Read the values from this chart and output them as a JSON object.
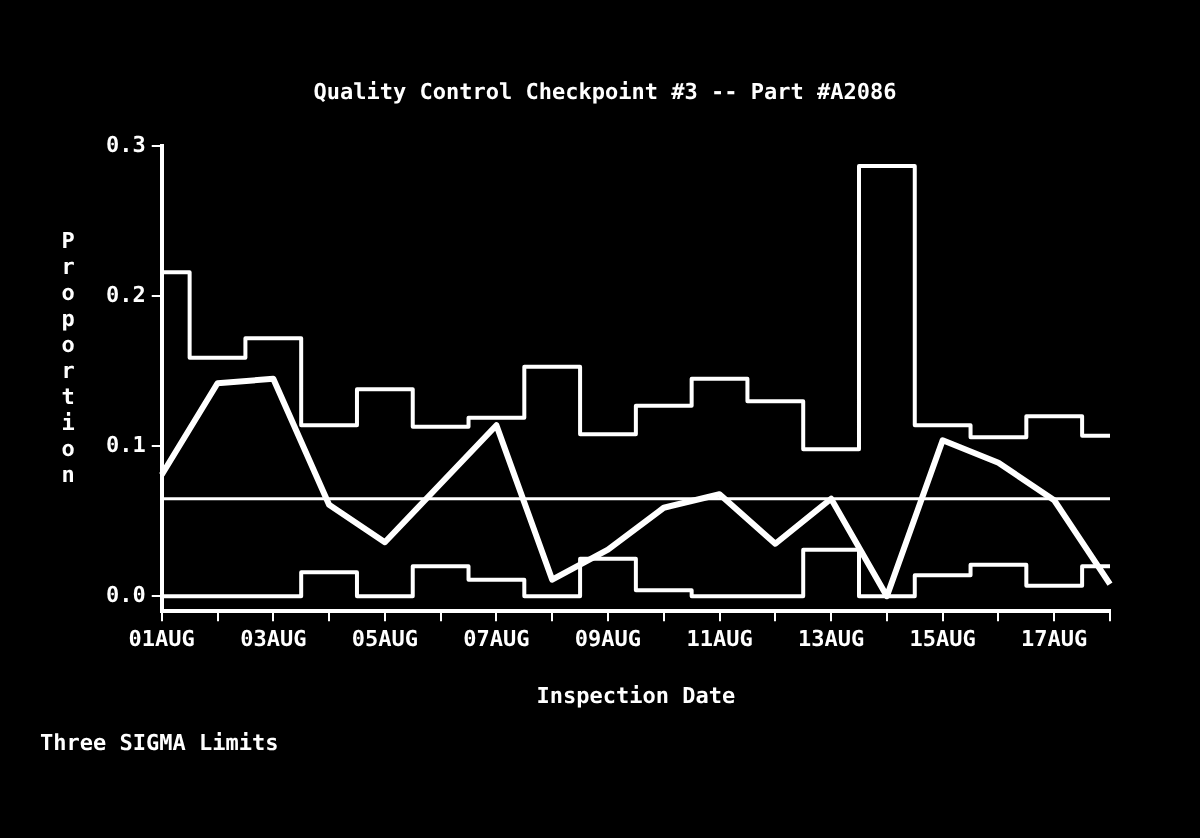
{
  "chart_data": {
    "type": "line",
    "subtitle": "Quality Control Checkpoint #3 -- Part #A2086",
    "xlabel": "Inspection Date",
    "ylabel": "Proportion",
    "categories": [
      "01AUG",
      null,
      "03AUG",
      null,
      "05AUG",
      null,
      "07AUG",
      null,
      "09AUG",
      null,
      "11AUG",
      null,
      "13AUG",
      null,
      "15AUG",
      null,
      "17AUG",
      null
    ],
    "series": [
      {
        "type": "line",
        "color": "#ffffff",
        "values": [
          0.081,
          0.142,
          0.145,
          0.061,
          0.036,
          0.075,
          0.114,
          0.011,
          0.031,
          0.059,
          0.068,
          0.035,
          0.065,
          0.0,
          0.104,
          0.089,
          0.064,
          0.008
        ]
      },
      {
        "type": "step",
        "color": "#ffffff",
        "values": [
          0.216,
          0.159,
          0.172,
          0.114,
          0.138,
          0.113,
          0.119,
          0.153,
          0.108,
          0.127,
          0.145,
          0.13,
          0.098,
          0.287,
          0.114,
          0.106,
          0.12,
          0.107
        ]
      },
      {
        "type": "step",
        "color": "#ffffff",
        "values": [
          0.0,
          0.0,
          0.0,
          0.016,
          0.0,
          0.02,
          0.011,
          0.0,
          0.025,
          0.004,
          0.0,
          0.0,
          0.031,
          0.0,
          0.014,
          0.021,
          0.007,
          0.02
        ]
      }
    ],
    "ylim": [
      -0.01,
      0.3
    ],
    "yticks": [
      {
        "value": 0,
        "label": "0.0"
      },
      {
        "value": 0.1,
        "label": "0.1"
      },
      {
        "value": 0.2,
        "label": "0.2"
      },
      {
        "value": 0.3,
        "label": "0.3"
      }
    ],
    "ref_lines": [
      {
        "axis": "y",
        "value": 0.065,
        "color": "#ffffff"
      }
    ],
    "annotations": [
      "Three SIGMA Limits"
    ],
    "grid": false,
    "legend": false,
    "marker": "none"
  }
}
